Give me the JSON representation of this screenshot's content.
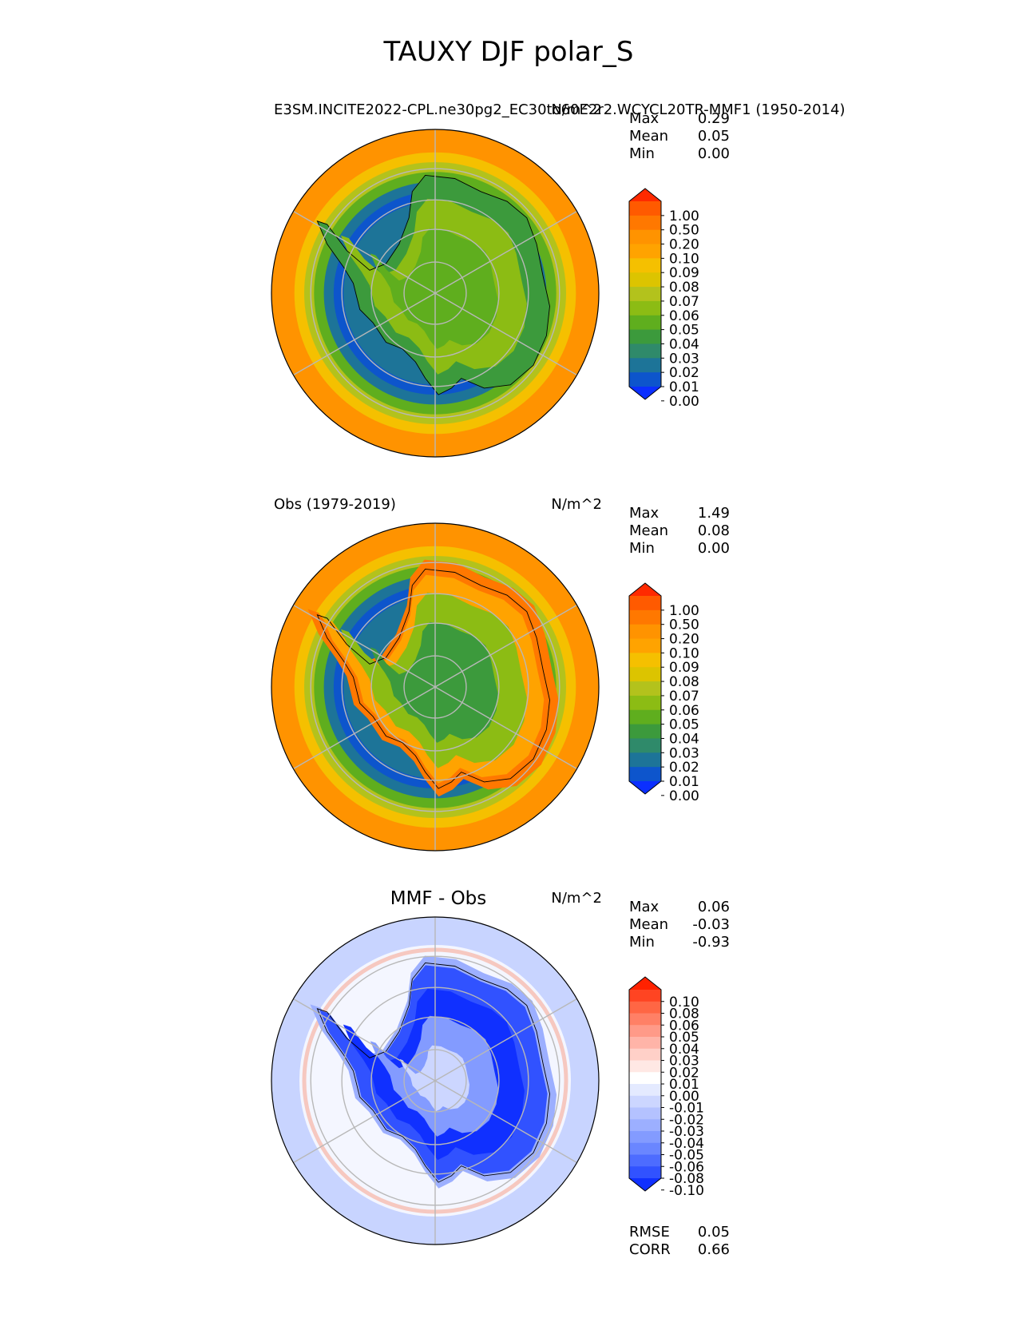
{
  "figure": {
    "title": "TAUXY DJF polar_S"
  },
  "chart_data": [
    {
      "type": "heatmap",
      "projection": "south polar stereographic",
      "left_title": "E3SM.INCITE2022-CPL.ne30pg2_EC30to60E2r2.WCYCL20TR-MMF1 (1950-2014)",
      "center_title": "",
      "units": "N/m^2",
      "stats": [
        {
          "label": "Max",
          "value": "0.29"
        },
        {
          "label": "Mean",
          "value": "0.05"
        },
        {
          "label": "Min",
          "value": "0.00"
        }
      ],
      "colorbar": {
        "levels": [
          "1.00",
          "0.50",
          "0.20",
          "0.10",
          "0.09",
          "0.08",
          "0.07",
          "0.06",
          "0.05",
          "0.04",
          "0.03",
          "0.02",
          "0.01",
          "0.00"
        ],
        "extend": "both",
        "colors": [
          "#ff2a00",
          "#ff5a00",
          "#ff7800",
          "#ff9300",
          "#ffa300",
          "#f5c000",
          "#dcc400",
          "#b3c21c",
          "#8cbc14",
          "#5fae1e",
          "#3c9a3c",
          "#2f8a6a",
          "#1d7498",
          "#0d55cc",
          "#0b2fff"
        ]
      },
      "grid": true
    },
    {
      "type": "heatmap",
      "projection": "south polar stereographic",
      "left_title": "Obs (1979-2019)",
      "center_title": "",
      "units": "N/m^2",
      "stats": [
        {
          "label": "Max",
          "value": "1.49"
        },
        {
          "label": "Mean",
          "value": "0.08"
        },
        {
          "label": "Min",
          "value": "0.00"
        }
      ],
      "colorbar": {
        "levels": [
          "1.00",
          "0.50",
          "0.20",
          "0.10",
          "0.09",
          "0.08",
          "0.07",
          "0.06",
          "0.05",
          "0.04",
          "0.03",
          "0.02",
          "0.01",
          "0.00"
        ],
        "extend": "both",
        "colors": [
          "#ff2a00",
          "#ff5a00",
          "#ff7800",
          "#ff9300",
          "#ffa300",
          "#f5c000",
          "#dcc400",
          "#b3c21c",
          "#8cbc14",
          "#5fae1e",
          "#3c9a3c",
          "#2f8a6a",
          "#1d7498",
          "#0d55cc",
          "#0b2fff"
        ]
      },
      "grid": true
    },
    {
      "type": "heatmap",
      "projection": "south polar stereographic",
      "left_title": "",
      "center_title": "MMF - Obs",
      "units": "N/m^2",
      "stats": [
        {
          "label": "Max",
          "value": "0.06"
        },
        {
          "label": "Mean",
          "value": "-0.03"
        },
        {
          "label": "Min",
          "value": "-0.93"
        }
      ],
      "colorbar": {
        "levels": [
          "0.10",
          "0.08",
          "0.06",
          "0.05",
          "0.04",
          "0.03",
          "0.02",
          "0.01",
          "0.00",
          "-0.01",
          "-0.02",
          "-0.03",
          "-0.04",
          "-0.05",
          "-0.06",
          "-0.08",
          "-0.10"
        ],
        "extend": "both",
        "colors": [
          "#ff2200",
          "#ff4422",
          "#ff6644",
          "#ff8066",
          "#ff9a88",
          "#ffb4a8",
          "#ffd0c8",
          "#ffe8e4",
          "#ffffff",
          "#e4eaff",
          "#ccd6ff",
          "#b4c2ff",
          "#9cafff",
          "#839bff",
          "#6a86ff",
          "#4d6cff",
          "#3152ff",
          "#1030ff"
        ]
      },
      "extra_stats": [
        {
          "label": "RMSE",
          "value": "0.05"
        },
        {
          "label": "CORR",
          "value": "0.66"
        }
      ],
      "grid": true
    }
  ]
}
